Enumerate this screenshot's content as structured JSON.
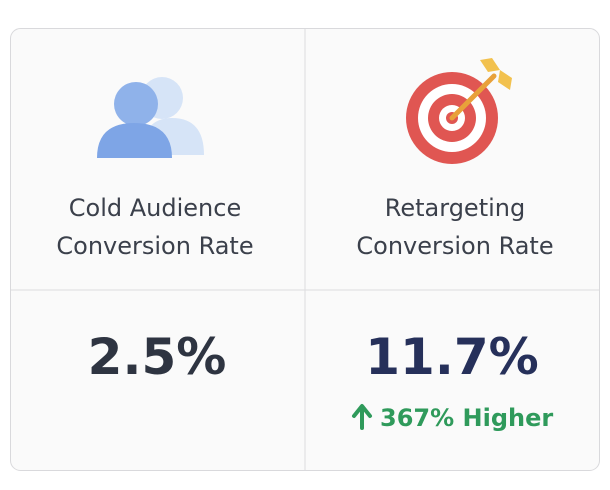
{
  "cards": [
    {
      "title_lines": [
        "Cold Audience",
        "Conversion Rate"
      ],
      "value": "2.5%"
    },
    {
      "title_lines": [
        "Retargeting",
        "Conversion Rate"
      ],
      "value": "11.7%",
      "change": "367% Higher"
    }
  ]
}
